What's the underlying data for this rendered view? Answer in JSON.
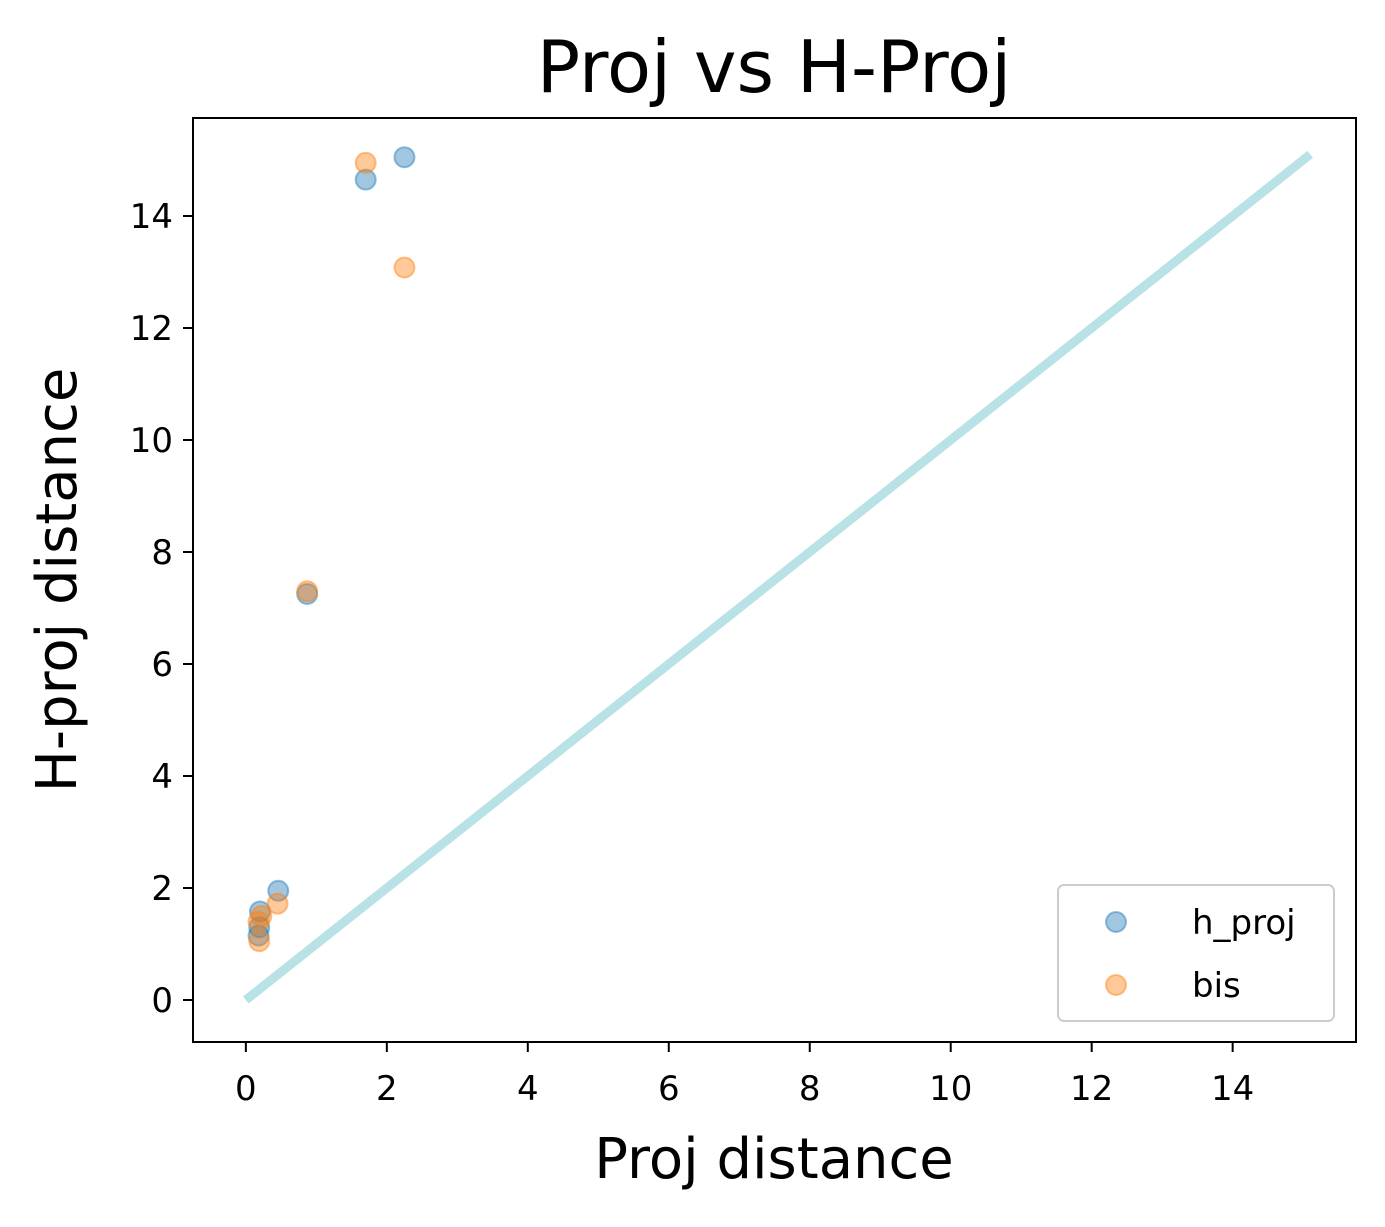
{
  "chart_data": {
    "type": "scatter",
    "title": "Proj vs H-Proj",
    "xlabel": "Proj distance",
    "ylabel": "H-proj distance",
    "xlim": [
      -0.75,
      15.75
    ],
    "ylim": [
      -0.75,
      15.75
    ],
    "xticks": [
      0,
      2,
      4,
      6,
      8,
      10,
      12,
      14
    ],
    "yticks": [
      0,
      2,
      4,
      6,
      8,
      10,
      12,
      14
    ],
    "grid": false,
    "legend_position": "lower-right",
    "reference_line": {
      "x": [
        0,
        15.1
      ],
      "y": [
        0,
        15.1
      ],
      "color": "#b9e2e6"
    },
    "series": [
      {
        "name": "h_proj",
        "color": "#1f77b4",
        "points": [
          [
            0.18,
            1.15
          ],
          [
            0.2,
            1.58
          ],
          [
            0.19,
            1.3
          ],
          [
            0.46,
            1.95
          ],
          [
            0.87,
            7.25
          ],
          [
            1.7,
            14.65
          ],
          [
            2.25,
            15.05
          ]
        ]
      },
      {
        "name": "bis",
        "color": "#ff7f0e",
        "points": [
          [
            0.19,
            1.05
          ],
          [
            0.18,
            1.4
          ],
          [
            0.22,
            1.5
          ],
          [
            0.45,
            1.72
          ],
          [
            0.87,
            7.3
          ],
          [
            1.7,
            14.95
          ],
          [
            2.25,
            13.08
          ]
        ]
      }
    ]
  }
}
